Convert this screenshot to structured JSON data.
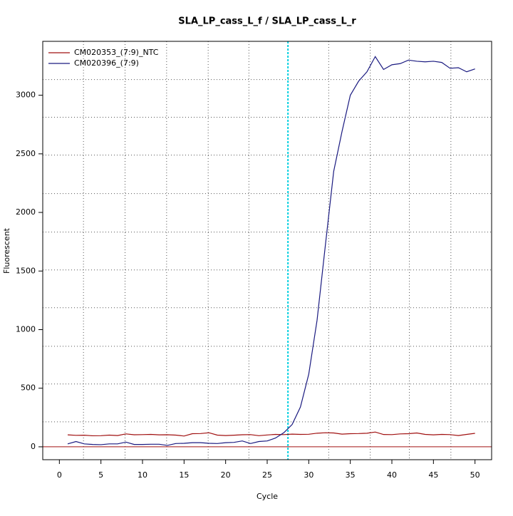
{
  "chart_data": {
    "type": "line",
    "title": "SLA_LP_cass_L_f / SLA_LP_cass_L_r",
    "xlabel": "Cycle",
    "ylabel": "Fluorescent",
    "x": [
      1,
      2,
      3,
      4,
      5,
      6,
      7,
      8,
      9,
      10,
      11,
      12,
      13,
      14,
      15,
      16,
      17,
      18,
      19,
      20,
      21,
      22,
      23,
      24,
      25,
      26,
      27,
      28,
      29,
      30,
      31,
      32,
      33,
      34,
      35,
      36,
      37,
      38,
      39,
      40,
      41,
      42,
      43,
      44,
      45,
      46,
      47,
      48,
      49,
      50
    ],
    "series": [
      {
        "name": "CM020353_(7:9)_NTC",
        "color": "#a01010",
        "values": [
          102,
          98,
          99,
          94,
          95,
          100,
          96,
          110,
          103,
          104,
          106,
          102,
          103,
          100,
          92,
          112,
          113,
          120,
          100,
          96,
          99,
          103,
          104,
          95,
          101,
          106,
          104,
          108,
          106,
          107,
          116,
          120,
          118,
          108,
          112,
          113,
          116,
          126,
          105,
          104,
          110,
          112,
          118,
          106,
          102,
          106,
          104,
          96,
          106,
          115
        ]
      },
      {
        "name": "CM020396_(7:9)",
        "color": "#1a1a80",
        "values": [
          25,
          45,
          25,
          20,
          18,
          25,
          25,
          40,
          20,
          20,
          22,
          22,
          12,
          28,
          30,
          35,
          35,
          30,
          28,
          35,
          38,
          50,
          28,
          45,
          50,
          75,
          120,
          190,
          340,
          620,
          1080,
          1720,
          2350,
          2690,
          3000,
          3120,
          3200,
          3330,
          3220,
          3260,
          3270,
          3300,
          3290,
          3285,
          3290,
          3280,
          3230,
          3235,
          3200,
          3225
        ]
      }
    ],
    "xlim": [
      -2,
      52
    ],
    "ylim": [
      -110,
      3460
    ],
    "xticks": [
      0,
      5,
      10,
      15,
      20,
      25,
      30,
      35,
      40,
      45,
      50
    ],
    "yticks": [
      0,
      500,
      1000,
      1500,
      2000,
      2500,
      3000
    ],
    "grid_x": [
      2.9,
      7.9,
      12.9,
      17.9,
      22.8,
      32.4,
      37.4,
      42.1,
      47.1
    ],
    "grid_y": [
      213,
      536,
      858,
      1187,
      1509,
      1832,
      2161,
      2489,
      2812,
      3134
    ],
    "threshold_x": 27.5,
    "threshold_color": "#00d0e0",
    "baseline_y": 0,
    "baseline_color": "#a01010",
    "legend": "top-left"
  }
}
